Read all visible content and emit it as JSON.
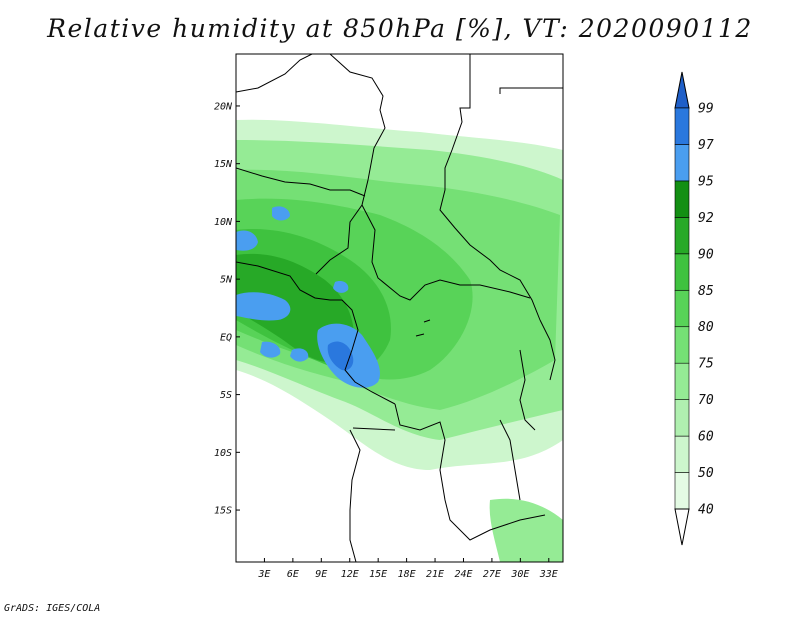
{
  "title": "Relative humidity at 850hPa [%], VT: 2020090112",
  "credit": "GrADS: IGES/COLA",
  "map": {
    "lat_range": [
      -19.5,
      24.5
    ],
    "lon_range": [
      0,
      34.5
    ],
    "lat_ticks": [
      {
        "value": 20,
        "label": "20N"
      },
      {
        "value": 15,
        "label": "15N"
      },
      {
        "value": 10,
        "label": "10N"
      },
      {
        "value": 5,
        "label": "5N"
      },
      {
        "value": 0,
        "label": "EQ"
      },
      {
        "value": -5,
        "label": "5S"
      },
      {
        "value": -10,
        "label": "10S"
      },
      {
        "value": -15,
        "label": "15S"
      }
    ],
    "lon_ticks": [
      {
        "value": 3,
        "label": "3E"
      },
      {
        "value": 6,
        "label": "6E"
      },
      {
        "value": 9,
        "label": "9E"
      },
      {
        "value": 12,
        "label": "12E"
      },
      {
        "value": 15,
        "label": "15E"
      },
      {
        "value": 18,
        "label": "18E"
      },
      {
        "value": 21,
        "label": "21E"
      },
      {
        "value": 24,
        "label": "24E"
      },
      {
        "value": 27,
        "label": "27E"
      },
      {
        "value": 30,
        "label": "30E"
      },
      {
        "value": 33,
        "label": "33E"
      }
    ]
  },
  "colorbar": {
    "levels": [
      {
        "label": "40",
        "color": "#ffffff"
      },
      {
        "label": "50",
        "color": "#e4fbe4"
      },
      {
        "label": "60",
        "color": "#cdf6cd"
      },
      {
        "label": "70",
        "color": "#b0f0b0"
      },
      {
        "label": "75",
        "color": "#95eb95"
      },
      {
        "label": "80",
        "color": "#75e075"
      },
      {
        "label": "85",
        "color": "#58d358"
      },
      {
        "label": "90",
        "color": "#3fc23f"
      },
      {
        "label": "92",
        "color": "#27a927"
      },
      {
        "label": "95",
        "color": "#138f13"
      },
      {
        "label": "97",
        "color": "#4a9ef0"
      },
      {
        "label": "99",
        "color": "#2a78de"
      }
    ],
    "top_color": "#1f5fc8",
    "bottom_color": "#ffffff"
  }
}
